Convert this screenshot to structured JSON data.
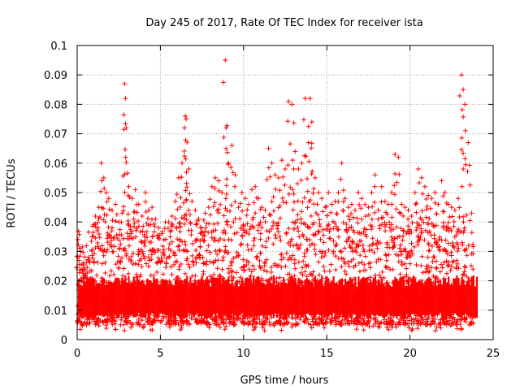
{
  "chart_data": {
    "type": "scatter",
    "title": "Day 245 of 2017, Rate Of TEC Index for receiver ista",
    "xlabel": "GPS time / hours",
    "ylabel": "ROTI / TECUs",
    "xlim": [
      0,
      25
    ],
    "ylim": [
      0,
      0.1
    ],
    "x_ticks": [
      "0",
      "5",
      "10",
      "15",
      "20",
      "25"
    ],
    "y_ticks": [
      "0",
      "0.01",
      "0.02",
      "0.03",
      "0.04",
      "0.05",
      "0.06",
      "0.07",
      "0.08",
      "0.09",
      "0.1"
    ],
    "grid": true,
    "marker": "+",
    "series_color": "#ff0000",
    "series": [
      {
        "name": "ROTI",
        "x": [
          0.05,
          0.2,
          0.35,
          0.5,
          0.7,
          0.9,
          1.1,
          1.3,
          1.45,
          1.6,
          1.75,
          1.9,
          2.1,
          2.3,
          2.5,
          2.7,
          2.85,
          2.9,
          2.95,
          3.1,
          3.3,
          3.5,
          3.7,
          3.9,
          4.1,
          4.3,
          4.5,
          4.7,
          4.9,
          5.1,
          5.3,
          5.5,
          5.7,
          5.9,
          6.1,
          6.3,
          6.45,
          6.5,
          6.55,
          6.7,
          6.9,
          7.1,
          7.3,
          7.5,
          7.7,
          7.9,
          8.1,
          8.3,
          8.5,
          8.7,
          8.9,
          8.95,
          9.1,
          9.3,
          9.5,
          9.7,
          9.9,
          10.1,
          10.3,
          10.5,
          10.7,
          10.9,
          11.1,
          11.3,
          11.5,
          11.7,
          11.9,
          12.1,
          12.3,
          12.5,
          12.7,
          12.9,
          13.1,
          13.3,
          13.5,
          13.7,
          13.9,
          14.0,
          14.1,
          14.3,
          14.5,
          14.7,
          14.9,
          15.1,
          15.3,
          15.5,
          15.7,
          15.9,
          16.1,
          16.3,
          16.5,
          16.7,
          16.9,
          17.1,
          17.3,
          17.5,
          17.7,
          17.9,
          18.1,
          18.3,
          18.5,
          18.7,
          18.9,
          19.1,
          19.3,
          19.5,
          19.7,
          19.9,
          20.1,
          20.3,
          20.5,
          20.7,
          20.9,
          21.1,
          21.3,
          21.5,
          21.7,
          21.9,
          22.1,
          22.3,
          22.5,
          22.7,
          22.9,
          23.1,
          23.2,
          23.3,
          23.5,
          23.7
        ],
        "y": [
          0.034,
          0.03,
          0.026,
          0.022,
          0.028,
          0.035,
          0.042,
          0.045,
          0.06,
          0.055,
          0.05,
          0.048,
          0.044,
          0.046,
          0.04,
          0.043,
          0.087,
          0.082,
          0.072,
          0.052,
          0.048,
          0.051,
          0.046,
          0.042,
          0.05,
          0.044,
          0.045,
          0.041,
          0.038,
          0.036,
          0.04,
          0.04,
          0.042,
          0.047,
          0.055,
          0.06,
          0.072,
          0.076,
          0.075,
          0.058,
          0.047,
          0.044,
          0.041,
          0.038,
          0.043,
          0.045,
          0.052,
          0.055,
          0.054,
          0.05,
          0.095,
          0.072,
          0.06,
          0.066,
          0.056,
          0.045,
          0.05,
          0.048,
          0.046,
          0.051,
          0.052,
          0.048,
          0.045,
          0.044,
          0.065,
          0.06,
          0.056,
          0.055,
          0.061,
          0.058,
          0.081,
          0.08,
          0.064,
          0.058,
          0.06,
          0.082,
          0.067,
          0.082,
          0.074,
          0.055,
          0.05,
          0.048,
          0.045,
          0.05,
          0.046,
          0.047,
          0.05,
          0.06,
          0.048,
          0.045,
          0.046,
          0.044,
          0.05,
          0.048,
          0.046,
          0.045,
          0.05,
          0.056,
          0.044,
          0.052,
          0.047,
          0.046,
          0.05,
          0.063,
          0.062,
          0.046,
          0.045,
          0.044,
          0.042,
          0.05,
          0.058,
          0.055,
          0.052,
          0.049,
          0.048,
          0.05,
          0.046,
          0.054,
          0.05,
          0.046,
          0.045,
          0.044,
          0.048,
          0.09,
          0.085,
          0.08,
          0.067,
          0.043
        ]
      }
    ],
    "baseline_band": {
      "description_range_y": [
        0.005,
        0.02
      ],
      "density": "dense"
    }
  }
}
